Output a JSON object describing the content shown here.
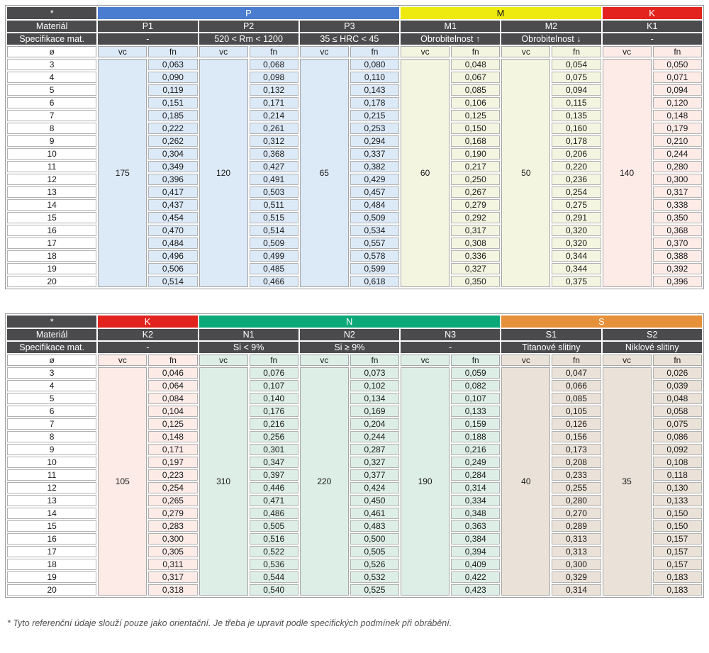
{
  "labels": {
    "corner": "*",
    "material": "Materiál",
    "spec": "Specifikace mat.",
    "diameter": "ø",
    "vc": "vc",
    "fn": "fn"
  },
  "diameters": [
    "3",
    "4",
    "5",
    "6",
    "7",
    "8",
    "9",
    "10",
    "11",
    "12",
    "13",
    "14",
    "15",
    "16",
    "17",
    "18",
    "19",
    "20"
  ],
  "colors": {
    "header_dark": "#4b4b4d",
    "group_P": "#4a7cd0",
    "group_M": "#eeea10",
    "group_K": "#e2231e",
    "group_N": "#0ca878",
    "group_S": "#e7903a"
  },
  "tables": [
    {
      "groups": [
        {
          "label": "P",
          "color": "#4a7cd0",
          "text_color": "#ffffff",
          "columns": [
            {
              "material": "P1",
              "spec": "-",
              "tint": "#dce9f7",
              "vc": "175",
              "fn": [
                "0,063",
                "0,090",
                "0,119",
                "0,151",
                "0,185",
                "0,222",
                "0,262",
                "0,304",
                "0,349",
                "0,396",
                "0,417",
                "0,437",
                "0,454",
                "0,470",
                "0,484",
                "0,496",
                "0,506",
                "0,514"
              ]
            },
            {
              "material": "P2",
              "spec": "520 < Rm < 1200",
              "tint": "#dce9f7",
              "vc": "120",
              "fn": [
                "0,068",
                "0,098",
                "0,132",
                "0,171",
                "0,214",
                "0,261",
                "0,312",
                "0,368",
                "0,427",
                "0,491",
                "0,503",
                "0,511",
                "0,515",
                "0,514",
                "0,509",
                "0,499",
                "0,485",
                "0,466"
              ]
            },
            {
              "material": "P3",
              "spec": "35 ≤ HRC < 45",
              "tint": "#dce9f7",
              "vc": "65",
              "fn": [
                "0,080",
                "0,110",
                "0,143",
                "0,178",
                "0,215",
                "0,253",
                "0,294",
                "0,337",
                "0,382",
                "0,429",
                "0,457",
                "0,484",
                "0,509",
                "0,534",
                "0,557",
                "0,578",
                "0,599",
                "0,618"
              ]
            }
          ]
        },
        {
          "label": "M",
          "color": "#eeea10",
          "text_color": "#1a1a1a",
          "columns": [
            {
              "material": "M1",
              "spec": "Obrobitelnost ↑",
              "tint": "#f3f5e0",
              "vc": "60",
              "fn": [
                "0,048",
                "0,067",
                "0,085",
                "0,106",
                "0,125",
                "0,150",
                "0,168",
                "0,190",
                "0,217",
                "0,250",
                "0,267",
                "0,279",
                "0,292",
                "0,317",
                "0,308",
                "0,336",
                "0,327",
                "0,350"
              ]
            },
            {
              "material": "M2",
              "spec": "Obrobitelnost ↓",
              "tint": "#f3f5e0",
              "vc": "50",
              "fn": [
                "0,054",
                "0,075",
                "0,094",
                "0,115",
                "0,135",
                "0,160",
                "0,178",
                "0,206",
                "0,220",
                "0,236",
                "0,254",
                "0,275",
                "0,291",
                "0,320",
                "0,320",
                "0,344",
                "0,344",
                "0,375"
              ]
            }
          ]
        },
        {
          "label": "K",
          "color": "#e2231e",
          "text_color": "#ffffff",
          "columns": [
            {
              "material": "K1",
              "spec": "-",
              "tint": "#fcebe7",
              "vc": "140",
              "fn": [
                "0,050",
                "0,071",
                "0,094",
                "0,120",
                "0,148",
                "0,179",
                "0,210",
                "0,244",
                "0,280",
                "0,300",
                "0,317",
                "0,338",
                "0,350",
                "0,368",
                "0,370",
                "0,388",
                "0,392",
                "0,396"
              ]
            }
          ]
        }
      ]
    },
    {
      "groups": [
        {
          "label": "K",
          "color": "#e2231e",
          "text_color": "#ffffff",
          "columns": [
            {
              "material": "K2",
              "spec": "-",
              "tint": "#fcebe7",
              "vc": "105",
              "fn": [
                "0,046",
                "0,064",
                "0,084",
                "0,104",
                "0,125",
                "0,148",
                "0,171",
                "0,197",
                "0,223",
                "0,254",
                "0,265",
                "0,279",
                "0,283",
                "0,300",
                "0,305",
                "0,311",
                "0,317",
                "0,318"
              ]
            }
          ]
        },
        {
          "label": "N",
          "color": "#0ca878",
          "text_color": "#ffffff",
          "columns": [
            {
              "material": "N1",
              "spec": "Si < 9%",
              "tint": "#ddeee6",
              "vc": "310",
              "fn": [
                "0,076",
                "0,107",
                "0,140",
                "0,176",
                "0,216",
                "0,256",
                "0,301",
                "0,347",
                "0,397",
                "0,446",
                "0,471",
                "0,486",
                "0,505",
                "0,516",
                "0,522",
                "0,536",
                "0,544",
                "0,540"
              ]
            },
            {
              "material": "N2",
              "spec": "Si ≥ 9%",
              "tint": "#ddeee6",
              "vc": "220",
              "fn": [
                "0,073",
                "0,102",
                "0,134",
                "0,169",
                "0,204",
                "0,244",
                "0,287",
                "0,327",
                "0,377",
                "0,424",
                "0,450",
                "0,461",
                "0,483",
                "0,500",
                "0,505",
                "0,526",
                "0,532",
                "0,525"
              ]
            },
            {
              "material": "N3",
              "spec": "-",
              "tint": "#ddeee6",
              "vc": "190",
              "fn": [
                "0,059",
                "0,082",
                "0,107",
                "0,133",
                "0,159",
                "0,188",
                "0,216",
                "0,249",
                "0,284",
                "0,314",
                "0,334",
                "0,348",
                "0,363",
                "0,384",
                "0,394",
                "0,409",
                "0,422",
                "0,423"
              ]
            }
          ]
        },
        {
          "label": "S",
          "color": "#e7903a",
          "text_color": "#ffffff",
          "columns": [
            {
              "material": "S1",
              "spec": "Titanové slitiny",
              "tint": "#eae2d8",
              "vc": "40",
              "fn": [
                "0,047",
                "0,066",
                "0,085",
                "0,105",
                "0,126",
                "0,156",
                "0,173",
                "0,208",
                "0,233",
                "0,255",
                "0,280",
                "0,270",
                "0,289",
                "0,313",
                "0,313",
                "0,300",
                "0,329",
                "0,314"
              ]
            },
            {
              "material": "S2",
              "spec": "Niklové slitiny",
              "tint": "#eae2d8",
              "vc": "35",
              "fn": [
                "0,026",
                "0,039",
                "0,048",
                "0,058",
                "0,075",
                "0,086",
                "0,092",
                "0,108",
                "0,118",
                "0,130",
                "0,133",
                "0,150",
                "0,150",
                "0,157",
                "0,157",
                "0,157",
                "0,183",
                "0,183"
              ]
            }
          ]
        }
      ]
    }
  ],
  "footnote": "* Tyto referenční údaje slouží pouze jako orientační. Je třeba je upravit podle specifických podmínek při obrábění."
}
